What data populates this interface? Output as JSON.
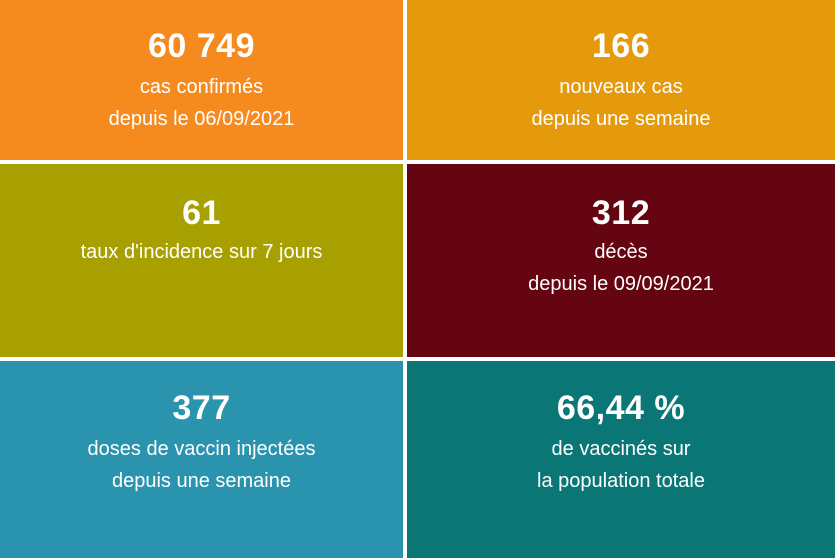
{
  "tiles": [
    {
      "value": "60 749",
      "lines": [
        "cas confirmés",
        "depuis le 06/09/2021"
      ],
      "color": "#F58A1F"
    },
    {
      "value": "166",
      "lines": [
        "nouveaux cas",
        "depuis une semaine"
      ],
      "color": "#E59A0C"
    },
    {
      "value": "61",
      "lines": [
        "taux d'incidence sur 7 jours"
      ],
      "color": "#A8A000"
    },
    {
      "value": "312",
      "lines": [
        "décès",
        "depuis le 09/09/2021"
      ],
      "color": "#650512"
    },
    {
      "value": "377",
      "lines": [
        "doses de vaccin injectées",
        "depuis une semaine"
      ],
      "color": "#2A93AE"
    },
    {
      "value": "66,44 %",
      "lines": [
        "de vaccinés sur",
        "la population totale"
      ],
      "color": "#0A7676"
    }
  ]
}
